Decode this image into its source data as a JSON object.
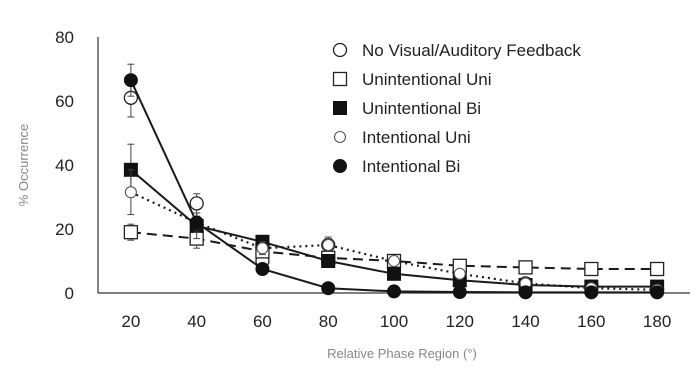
{
  "chart_data": {
    "type": "line",
    "xlabel": "Relative Phase Region (°)",
    "ylabel": "% Occurrence",
    "x": [
      20,
      40,
      60,
      80,
      100,
      120,
      140,
      160,
      180
    ],
    "xlim": [
      10,
      190
    ],
    "ylim": [
      0,
      80
    ],
    "yticks": [
      0,
      20,
      40,
      60,
      80
    ],
    "grid": false,
    "legend_position": "top-right",
    "series": [
      {
        "name": "No Visual/Auditory Feedback",
        "marker": "open-circle",
        "line": "none",
        "values": [
          61,
          28,
          10,
          15,
          10,
          7,
          3,
          2,
          1
        ],
        "errors": [
          6,
          3,
          1.5,
          2.5,
          1.5,
          1,
          1,
          0.5,
          0.5
        ]
      },
      {
        "name": "Unintentional Uni",
        "marker": "open-square",
        "line": "dashed",
        "values": [
          19,
          17,
          13,
          11,
          10,
          8.5,
          8,
          7.5,
          7.5
        ],
        "errors": [
          2.5,
          3,
          1.5,
          1.5,
          1,
          1,
          1,
          1,
          1
        ]
      },
      {
        "name": "Unintentional Bi",
        "marker": "filled-square",
        "line": "solid",
        "values": [
          38.5,
          21,
          16,
          10,
          6,
          4,
          2.5,
          2,
          2
        ],
        "errors": [
          8,
          4,
          2,
          1.5,
          1,
          1,
          0.5,
          0.5,
          0.5
        ]
      },
      {
        "name": "Intentional Uni",
        "marker": "open-circle-small",
        "line": "dotted",
        "values": [
          31.5,
          22,
          14,
          15,
          10,
          6,
          3,
          1.5,
          1
        ],
        "errors": [
          7,
          3,
          2,
          2,
          1.5,
          1,
          0.5,
          0.5,
          0.5
        ]
      },
      {
        "name": "Intentional Bi",
        "marker": "filled-circle",
        "line": "solid",
        "values": [
          66.5,
          22,
          7.5,
          1.5,
          0.5,
          0.3,
          0.2,
          0.2,
          0.2
        ],
        "errors": [
          5,
          2,
          1,
          0.5,
          0.3,
          0.2,
          0.2,
          0.2,
          0.2
        ]
      }
    ]
  }
}
